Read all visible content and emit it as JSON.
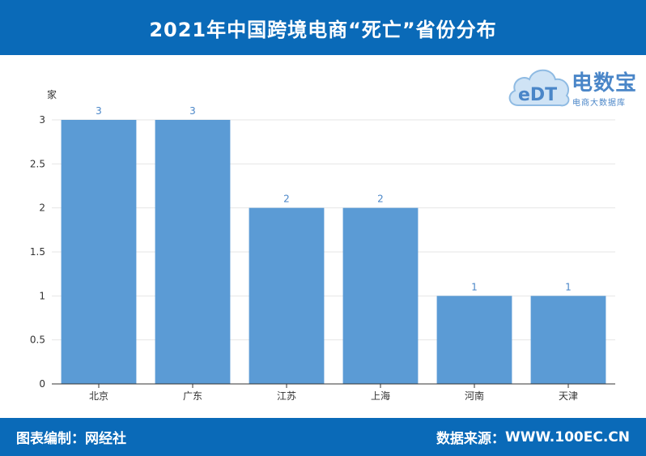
{
  "header": {
    "title": "2021年中国跨境电商“死亡”省份分布"
  },
  "footer": {
    "editor_label": "图表编制：",
    "editor": "网经社",
    "source_label": "数据来源：",
    "source": "WWW.100EC.CN"
  },
  "logo": {
    "mark": "eDT",
    "title": "电数宝",
    "subtitle": "电商大数据库"
  },
  "colors": {
    "bar": "#5b9bd5",
    "header": "#0a6ab8",
    "value_label": "#4a86c8"
  },
  "chart_data": {
    "type": "bar",
    "categories": [
      "北京",
      "广东",
      "江苏",
      "上海",
      "河南",
      "天津"
    ],
    "values": [
      3,
      3,
      2,
      2,
      1,
      1
    ],
    "ylabel": "家",
    "ylim": [
      0,
      3
    ],
    "yticks": [
      "0",
      "0.5",
      "1",
      "1.5",
      "2",
      "2.5",
      "3"
    ],
    "grid": true
  }
}
